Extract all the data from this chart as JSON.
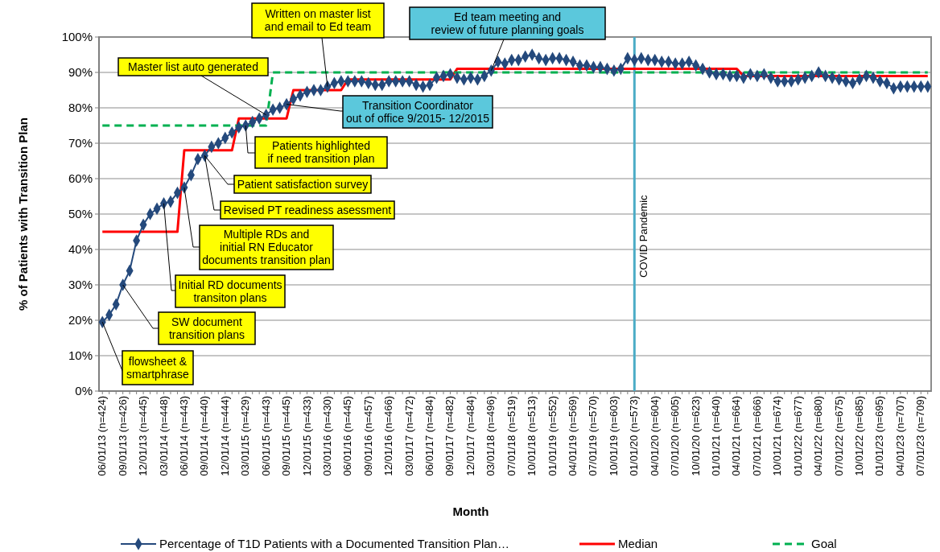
{
  "chart_data": {
    "type": "line",
    "xlabel": "Month",
    "ylabel": "% of Patients with Transition Plan",
    "categories": [
      "06/01/13 (n=424)",
      null,
      null,
      "09/01/13 (n=426)",
      null,
      null,
      "12/01/13 (n=445)",
      null,
      null,
      "03/01/14 (n=448)",
      null,
      null,
      "06/01/14 (n=443)",
      null,
      null,
      "09/01/14 (n=440)",
      null,
      null,
      "12/01/14 (n=444)",
      null,
      null,
      "03/01/15 (n=429)",
      null,
      null,
      "06/01/15 (n=443)",
      null,
      null,
      "09/01/15 (n=445)",
      null,
      null,
      "12/01/15 (n=433)",
      null,
      null,
      "03/01/16 (n=430)",
      null,
      null,
      "06/01/16 (n=445)",
      null,
      null,
      "09/01/16 (n=457)",
      null,
      null,
      "12/01/16 (n=466)",
      null,
      null,
      "03/01/17 (n=472)",
      null,
      null,
      "06/01/17 (n=484)",
      null,
      null,
      "09/01/17 (n=482)",
      null,
      null,
      "12/01/17 (n=484)",
      null,
      null,
      "03/01/18 (n=496)",
      null,
      null,
      "07/01/18 (n=519)",
      null,
      null,
      "10/01/18 (n=513)",
      null,
      null,
      "01/01/19 (n=552)",
      null,
      null,
      "04/01/19 (n=569)",
      null,
      null,
      "07/01/19 (n=570)",
      null,
      null,
      "10/01/19 (n=603)",
      null,
      null,
      "01/01/20 (n=573)",
      null,
      null,
      "04/01/20 (n=604)",
      null,
      null,
      "07/01/20 (n=605)",
      null,
      null,
      "10/01/20 (n=623)",
      null,
      null,
      "01/01/21 (n=640)",
      null,
      null,
      "04/01/21 (n=664)",
      null,
      null,
      "07/01/21 (n=666)",
      null,
      null,
      "10/01/21 (n=674)",
      null,
      null,
      "01/01/22 (n=677)",
      null,
      null,
      "04/01/22 (n=680)",
      null,
      null,
      "07/01/22 (n=675)",
      null,
      null,
      "10/01/22 (n=685)",
      null,
      null,
      "01/01/23 (n=695)",
      null,
      null,
      "04/01/23 (n=707)",
      null,
      null,
      "07/01/23 (n=709)",
      null
    ],
    "series": [
      {
        "name": "Percentage of T1D Patients with a Documented Transition Plan…",
        "color": "#24497c",
        "marker": "diamond",
        "line_style": "solid",
        "values": [
          19.5,
          21.5,
          24.5,
          30,
          34,
          42.5,
          47,
          50,
          51.5,
          53,
          53.5,
          56,
          57.5,
          61,
          65.5,
          66.5,
          69,
          70,
          71.5,
          73,
          74.5,
          75,
          76,
          77,
          78,
          79.5,
          80,
          81,
          82.5,
          83.5,
          84.5,
          85,
          85,
          86,
          87,
          87.5,
          87.5,
          87.5,
          87.5,
          87,
          86.5,
          86.5,
          87.5,
          87.5,
          87.5,
          87.5,
          86.5,
          86,
          86.5,
          88.5,
          89,
          89.5,
          88.5,
          88,
          88.5,
          88,
          89,
          90.5,
          93,
          92.5,
          93.5,
          93.5,
          94.5,
          95,
          94,
          93.5,
          94,
          94,
          93.5,
          93,
          92,
          92,
          91.5,
          91.5,
          91,
          90.5,
          91,
          94,
          93.5,
          94,
          93.5,
          93.5,
          93,
          93,
          92.5,
          92.5,
          93,
          92,
          91,
          90,
          89.5,
          89.5,
          89,
          89,
          88.5,
          89.5,
          89,
          89.5,
          88.5,
          87.5,
          87.5,
          87.5,
          88,
          88.5,
          89,
          90,
          89,
          88.5,
          88,
          87.5,
          87,
          88,
          89,
          88.5,
          87.5,
          87,
          85.5,
          86,
          86,
          86,
          86,
          86
        ]
      },
      {
        "name": "Median",
        "color": "#ff0000",
        "marker": "none",
        "line_style": "solid",
        "values": [
          45,
          45,
          45,
          45,
          45,
          45,
          45,
          45,
          45,
          45,
          45,
          45,
          68,
          68,
          68,
          68,
          68,
          68,
          68,
          68,
          77,
          77,
          77,
          77,
          77,
          77,
          77,
          77,
          85,
          85,
          85,
          85,
          85,
          85,
          85,
          85,
          88,
          88,
          88,
          88,
          88,
          88,
          88,
          88,
          88,
          88,
          88,
          88,
          88,
          88,
          88,
          88,
          91,
          91,
          91,
          91,
          91,
          91,
          91,
          91,
          91,
          91,
          91,
          91,
          91,
          91,
          91,
          91,
          91,
          91,
          91,
          91,
          91,
          91,
          91,
          91,
          91,
          91,
          91,
          91,
          91,
          91,
          91,
          91,
          91,
          91,
          91,
          91,
          91,
          91,
          91,
          91,
          91,
          91,
          89,
          89,
          89,
          89,
          89,
          89,
          89,
          89,
          89,
          89,
          89,
          89,
          89,
          89,
          89,
          89,
          89,
          89,
          89,
          89,
          89,
          89,
          89,
          89,
          89,
          89,
          89,
          89
        ]
      },
      {
        "name": "Goal",
        "color": "#00b050",
        "marker": "none",
        "line_style": "dashed",
        "values": [
          75,
          75,
          75,
          75,
          75,
          75,
          75,
          75,
          75,
          75,
          75,
          75,
          75,
          75,
          75,
          75,
          75,
          75,
          75,
          75,
          75,
          75,
          75,
          75,
          75,
          90,
          90,
          90,
          90,
          90,
          90,
          90,
          90,
          90,
          90,
          90,
          90,
          90,
          90,
          90,
          90,
          90,
          90,
          90,
          90,
          90,
          90,
          90,
          90,
          90,
          90,
          90,
          90,
          90,
          90,
          90,
          90,
          90,
          90,
          90,
          90,
          90,
          90,
          90,
          90,
          90,
          90,
          90,
          90,
          90,
          90,
          90,
          90,
          90,
          90,
          90,
          90,
          90,
          90,
          90,
          90,
          90,
          90,
          90,
          90,
          90,
          90,
          90,
          90,
          90,
          90,
          90,
          90,
          90,
          90,
          90,
          90,
          90,
          90,
          90,
          90,
          90,
          90,
          90,
          90,
          90,
          90,
          90,
          90,
          90,
          90,
          90,
          90,
          90,
          90,
          90,
          90,
          90,
          90,
          90,
          90,
          90
        ]
      }
    ],
    "ylim": [
      0,
      100
    ],
    "yticks": [
      {
        "value": 0,
        "label": "0%"
      },
      {
        "value": 10,
        "label": "10%"
      },
      {
        "value": 20,
        "label": "20%"
      },
      {
        "value": 30,
        "label": "30%"
      },
      {
        "value": 40,
        "label": "40%"
      },
      {
        "value": 50,
        "label": "50%"
      },
      {
        "value": 60,
        "label": "60%"
      },
      {
        "value": 70,
        "label": "70%"
      },
      {
        "value": 80,
        "label": "80%"
      },
      {
        "value": 90,
        "label": "90%"
      },
      {
        "value": 100,
        "label": "100%"
      }
    ],
    "grid": "y",
    "legend": "bottom",
    "ref_lines": [
      {
        "axis": "x",
        "value": "01/01/20 (n=573)",
        "label": "COVID Pandemic",
        "color": "#4bacc6"
      }
    ],
    "annotations": [
      {
        "text": "flowsheet &\nsmartphrase",
        "x": "06/01/13 (n=424)",
        "y": 19.5
      },
      {
        "text": "SW document\ntransition plans",
        "x": "09/01/13 (n=426)",
        "y": 30
      },
      {
        "text": "Initial RD documents\ntransiton plans",
        "x": "03/01/14 (n=448)",
        "y": 53
      },
      {
        "text": "Multiple RDs and\ninitial RN Educator\ndocuments transition plan",
        "x": "06/01/14 (n=443)",
        "y": 57.5
      },
      {
        "text": "Revised PT readiness asessment",
        "x": "09/01/14 (n=440)",
        "y": 66.5
      },
      {
        "text": "Patient satisfaction survey",
        "x": "09/01/14 (n=440)",
        "y": 66.5
      },
      {
        "text": "Patients highlighted\nif need transition plan",
        "x": "03/01/15 (n=429)",
        "y": 75
      },
      {
        "text": "Master list auto generated",
        "x": "06/01/15 (n=443)",
        "y": 78
      },
      {
        "text": "Written on master list\nand email to Ed team",
        "x": "03/01/16 (n=430)",
        "y": 86
      },
      {
        "text": "Transition Coordinator\nout of office 9/2015- 12/2015",
        "x": "09/01/15 (n=445)",
        "y": 81
      },
      {
        "text": "Ed team meeting and\nreview of future planning goals",
        "x": "03/01/18 (n=496)",
        "y": 90.5
      }
    ]
  }
}
